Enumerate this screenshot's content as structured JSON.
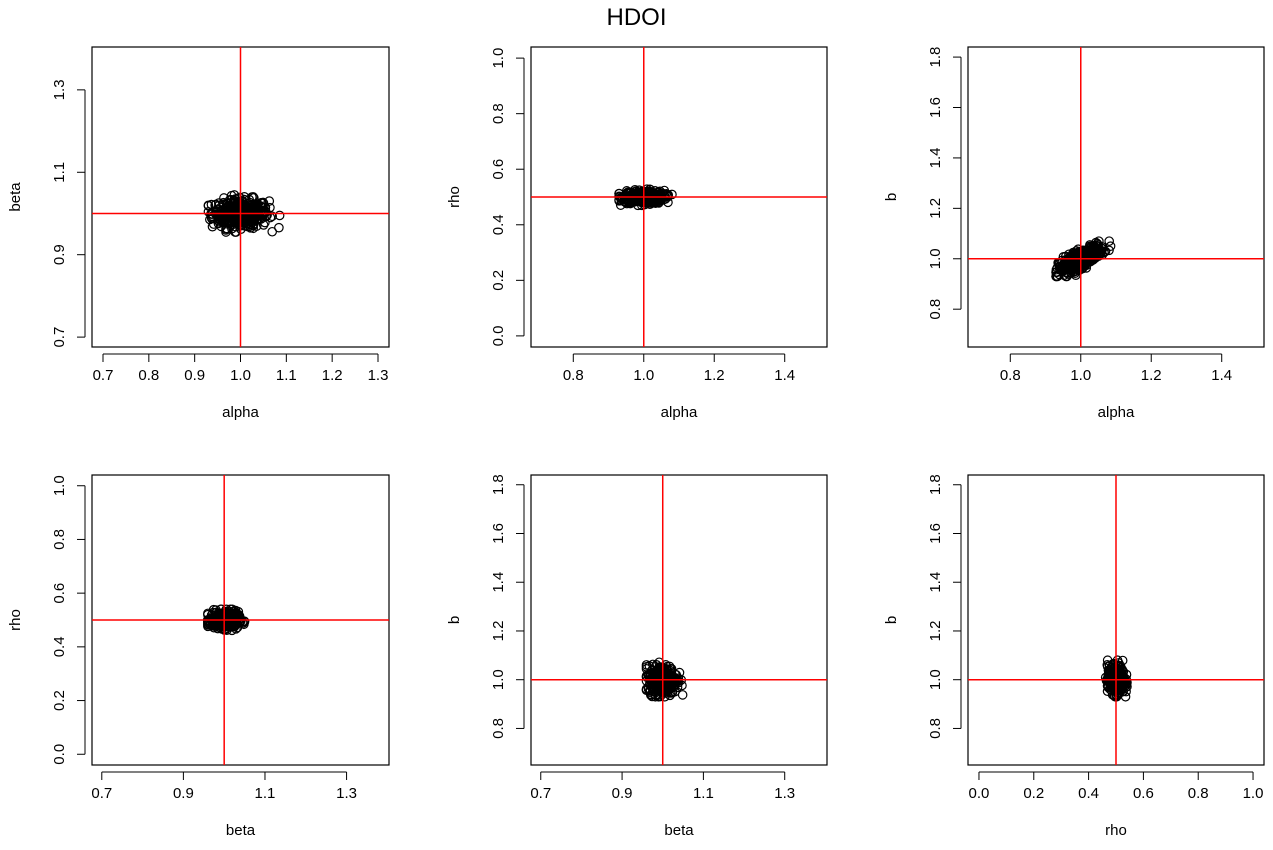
{
  "title": "HDOI",
  "colors": {
    "reference_line": "#ff0000",
    "points": "#000000",
    "axes": "#000000"
  },
  "chart_data": [
    {
      "type": "scatter",
      "xlabel": "alpha",
      "ylabel": "beta",
      "xticks": [
        "0.7",
        "0.8",
        "0.9",
        "1.0",
        "1.1",
        "1.2",
        "1.3"
      ],
      "yticks": [
        "0.7",
        "0.9",
        "1.1",
        "1.3"
      ],
      "xlim": [
        0.676,
        1.324
      ],
      "ylim": [
        0.676,
        1.404
      ],
      "reference": {
        "x": 1.0,
        "y": 1.0
      },
      "cloud": {
        "x_center": 1.0,
        "x_min": 0.93,
        "x_max": 1.09,
        "y_center": 1.0,
        "y_min": 0.955,
        "y_max": 1.045,
        "correlation": 0
      }
    },
    {
      "type": "scatter",
      "xlabel": "alpha",
      "ylabel": "rho",
      "xticks": [
        "0.8",
        "1.0",
        "1.2",
        "1.4"
      ],
      "yticks": [
        "0.0",
        "0.2",
        "0.4",
        "0.6",
        "0.8",
        "1.0"
      ],
      "xlim": [
        0.68,
        1.52
      ],
      "ylim": [
        -0.04,
        1.04
      ],
      "reference": {
        "x": 1.0,
        "y": 0.5
      },
      "cloud": {
        "x_center": 1.0,
        "x_min": 0.93,
        "x_max": 1.08,
        "y_center": 0.5,
        "y_min": 0.47,
        "y_max": 0.53,
        "correlation": 0
      }
    },
    {
      "type": "scatter",
      "xlabel": "alpha",
      "ylabel": "b",
      "xticks": [
        "0.8",
        "1.0",
        "1.2",
        "1.4"
      ],
      "yticks": [
        "0.8",
        "1.0",
        "1.2",
        "1.4",
        "1.6",
        "1.8"
      ],
      "xlim": [
        0.68,
        1.52
      ],
      "ylim": [
        0.65,
        1.84
      ],
      "reference": {
        "x": 1.0,
        "y": 1.0
      },
      "cloud": {
        "x_center": 1.0,
        "x_min": 0.93,
        "x_max": 1.09,
        "y_center": 1.0,
        "y_min": 0.93,
        "y_max": 1.07,
        "correlation": 0.75
      }
    },
    {
      "type": "scatter",
      "xlabel": "beta",
      "ylabel": "rho",
      "xticks": [
        "0.7",
        "0.9",
        "1.1",
        "1.3"
      ],
      "yticks": [
        "0.0",
        "0.2",
        "0.4",
        "0.6",
        "0.8",
        "1.0"
      ],
      "xlim": [
        0.676,
        1.404
      ],
      "ylim": [
        -0.04,
        1.04
      ],
      "reference": {
        "x": 1.0,
        "y": 0.5
      },
      "cloud": {
        "x_center": 1.0,
        "x_min": 0.96,
        "x_max": 1.05,
        "y_center": 0.5,
        "y_min": 0.46,
        "y_max": 0.54,
        "correlation": 0
      }
    },
    {
      "type": "scatter",
      "xlabel": "beta",
      "ylabel": "b",
      "xticks": [
        "0.7",
        "0.9",
        "1.1",
        "1.3"
      ],
      "yticks": [
        "0.8",
        "1.0",
        "1.2",
        "1.4",
        "1.6",
        "1.8"
      ],
      "xlim": [
        0.676,
        1.404
      ],
      "ylim": [
        0.65,
        1.84
      ],
      "reference": {
        "x": 1.0,
        "y": 1.0
      },
      "cloud": {
        "x_center": 1.0,
        "x_min": 0.96,
        "x_max": 1.05,
        "y_center": 1.0,
        "y_min": 0.93,
        "y_max": 1.08,
        "correlation": 0
      }
    },
    {
      "type": "scatter",
      "xlabel": "rho",
      "ylabel": "b",
      "xticks": [
        "0.0",
        "0.2",
        "0.4",
        "0.6",
        "0.8",
        "1.0"
      ],
      "yticks": [
        "0.8",
        "1.0",
        "1.2",
        "1.4",
        "1.6",
        "1.8"
      ],
      "xlim": [
        -0.04,
        1.04
      ],
      "ylim": [
        0.65,
        1.84
      ],
      "reference": {
        "x": 0.5,
        "y": 1.0
      },
      "cloud": {
        "x_center": 0.5,
        "x_min": 0.46,
        "x_max": 0.54,
        "y_center": 1.0,
        "y_min": 0.93,
        "y_max": 1.08,
        "correlation": 0
      }
    }
  ]
}
